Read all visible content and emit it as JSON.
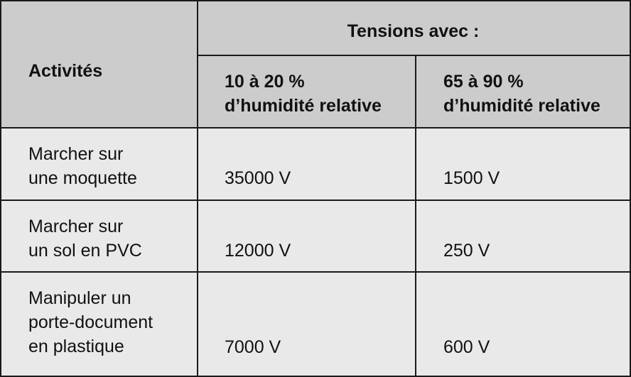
{
  "table": {
    "header": {
      "activities_label": "Activités",
      "group_label": "Tensions avec :",
      "col1_label": "10 à 20 %\nd’humidité relative",
      "col2_label": "65 à 90 %\nd’humidité relative"
    },
    "rows": [
      {
        "activity": "Marcher sur\nune moquette",
        "low_humidity": "35000 V",
        "high_humidity": "1500 V"
      },
      {
        "activity": "Marcher sur\nun sol en PVC",
        "low_humidity": "12000 V",
        "high_humidity": "250 V"
      },
      {
        "activity": "Manipuler un\nporte-document\nen plastique",
        "low_humidity": "7000 V",
        "high_humidity": "600 V"
      }
    ]
  }
}
